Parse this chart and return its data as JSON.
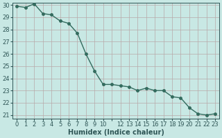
{
  "x": [
    0,
    1,
    2,
    3,
    4,
    5,
    6,
    7,
    8,
    9,
    10,
    11,
    12,
    13,
    14,
    15,
    16,
    17,
    18,
    19,
    20,
    21,
    22,
    23
  ],
  "y": [
    29.9,
    29.8,
    30.1,
    29.3,
    29.2,
    28.7,
    28.5,
    27.7,
    26.0,
    24.6,
    23.5,
    23.5,
    23.4,
    23.3,
    23.0,
    23.2,
    23.0,
    23.0,
    22.5,
    22.4,
    21.6,
    21.1,
    21.0,
    21.1
  ],
  "line_color": "#336b5e",
  "bg_color": "#c8e8e4",
  "grid_color_major": "#b8a8a8",
  "grid_color_minor": "#d8c8c8",
  "xlabel": "Humidex (Indice chaleur)",
  "ylim_min": 21,
  "ylim_max": 30,
  "yticks": [
    21,
    22,
    23,
    24,
    25,
    26,
    27,
    28,
    29,
    30
  ],
  "font_color": "#2e5555",
  "marker_size": 2.5,
  "line_width": 1.0,
  "xlabel_fontsize": 7,
  "tick_fontsize": 6
}
